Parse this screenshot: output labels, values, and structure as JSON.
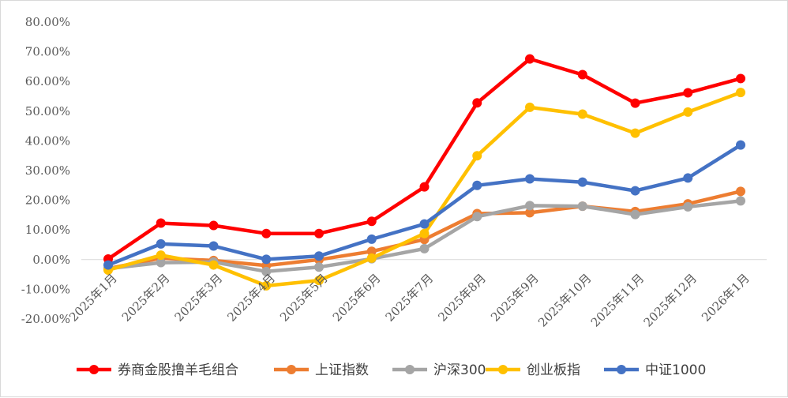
{
  "chart_data": {
    "type": "line",
    "categories": [
      "2025年1月",
      "2025年2月",
      "2025年3月",
      "2025年4月",
      "2025年5月",
      "2025年6月",
      "2025年7月",
      "2025年8月",
      "2025年9月",
      "2025年10月",
      "2025年11月",
      "2025年12月",
      "2026年1月"
    ],
    "y_tick_labels": [
      "80.00%",
      "70.00%",
      "60.00%",
      "50.00%",
      "40.00%",
      "30.00%",
      "20.00%",
      "10.00%",
      "0.00%",
      "-10.00%",
      "-20.00%"
    ],
    "ylim": [
      -20,
      80
    ],
    "y_unit": "%",
    "grid": "zero line only",
    "legend_position": "bottom",
    "series": [
      {
        "name": "券商金股撸羊毛组合",
        "color": "#ff0000",
        "values": [
          0.2,
          12.3,
          11.5,
          8.8,
          8.8,
          12.9,
          24.5,
          52.8,
          67.6,
          62.3,
          52.7,
          56.2,
          61.0
        ]
      },
      {
        "name": "上证指数",
        "color": "#ed7d31",
        "values": [
          -3.0,
          0.5,
          -0.3,
          -2.0,
          0.0,
          2.8,
          6.8,
          15.5,
          15.8,
          18.0,
          16.2,
          18.8,
          23.0
        ]
      },
      {
        "name": "沪深300",
        "color": "#a5a5a5",
        "values": [
          -3.0,
          -1.0,
          -0.8,
          -4.0,
          -2.5,
          0.3,
          3.7,
          14.5,
          18.2,
          18.0,
          15.2,
          17.8,
          19.8
        ]
      },
      {
        "name": "创业板指",
        "color": "#ffc000",
        "values": [
          -3.5,
          1.5,
          -1.8,
          -8.8,
          -7.0,
          0.5,
          8.8,
          35.0,
          51.3,
          49.0,
          42.6,
          49.7,
          56.3
        ]
      },
      {
        "name": "中证1000",
        "color": "#4472c4",
        "values": [
          -1.8,
          5.3,
          4.6,
          0.1,
          1.2,
          6.9,
          12.0,
          25.0,
          27.2,
          26.1,
          23.2,
          27.5,
          38.6
        ]
      }
    ]
  }
}
